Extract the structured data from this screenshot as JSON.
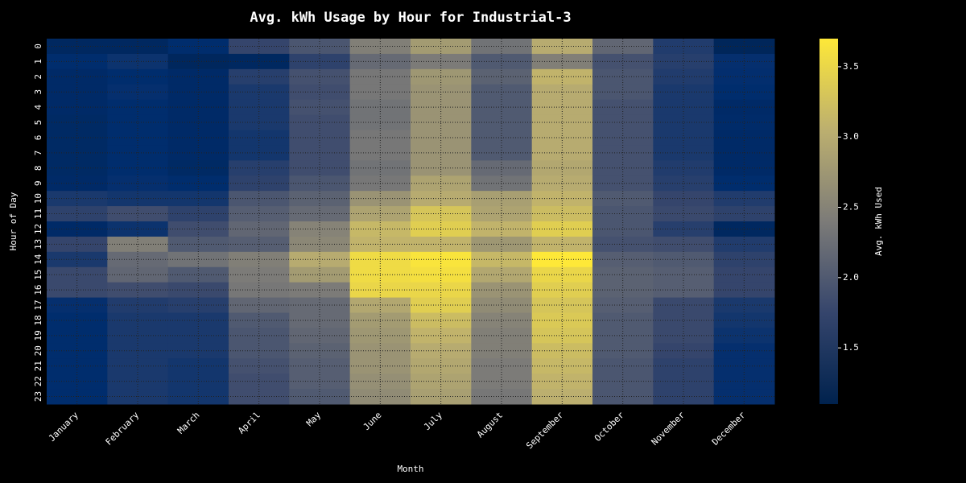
{
  "chart_data": {
    "type": "heatmap",
    "title": "Avg. kWh Usage by Hour for Industrial-3",
    "xlabel": "Month",
    "ylabel": "Hour of Day",
    "colorbar_label": "Avg. kWh Used",
    "colormap": "cividis",
    "colorbar_range": [
      1.1,
      3.7
    ],
    "colorbar_ticks": [
      "1.5",
      "2.0",
      "2.5",
      "3.0",
      "3.5"
    ],
    "grid": "dotted",
    "x": [
      "January",
      "February",
      "March",
      "April",
      "May",
      "June",
      "July",
      "August",
      "September",
      "October",
      "November",
      "December"
    ],
    "y": [
      "0",
      "1",
      "2",
      "3",
      "4",
      "5",
      "6",
      "7",
      "8",
      "9",
      "10",
      "11",
      "12",
      "13",
      "14",
      "15",
      "16",
      "17",
      "18",
      "19",
      "20",
      "21",
      "22",
      "23"
    ],
    "values": [
      [
        1.25,
        1.25,
        1.35,
        1.75,
        1.95,
        2.45,
        2.8,
        2.3,
        3.0,
        2.15,
        1.6,
        1.2
      ],
      [
        1.35,
        1.45,
        1.22,
        1.25,
        1.7,
        2.2,
        2.4,
        2.0,
        2.45,
        1.9,
        1.65,
        1.4
      ],
      [
        1.3,
        1.35,
        1.3,
        1.65,
        1.9,
        2.35,
        2.75,
        2.1,
        3.1,
        1.95,
        1.6,
        1.38
      ],
      [
        1.3,
        1.4,
        1.3,
        1.55,
        1.85,
        2.35,
        2.7,
        2.0,
        3.0,
        1.95,
        1.55,
        1.35
      ],
      [
        1.3,
        1.35,
        1.3,
        1.55,
        1.9,
        2.3,
        2.7,
        2.0,
        3.0,
        1.9,
        1.55,
        1.3
      ],
      [
        1.28,
        1.35,
        1.3,
        1.55,
        1.85,
        2.3,
        2.7,
        2.0,
        3.0,
        1.9,
        1.55,
        1.32
      ],
      [
        1.28,
        1.35,
        1.3,
        1.5,
        1.85,
        2.35,
        2.7,
        2.0,
        3.0,
        1.9,
        1.55,
        1.3
      ],
      [
        1.28,
        1.35,
        1.3,
        1.5,
        1.85,
        2.35,
        2.7,
        2.0,
        3.0,
        1.9,
        1.55,
        1.3
      ],
      [
        1.28,
        1.35,
        1.28,
        1.65,
        1.85,
        2.3,
        2.7,
        2.2,
        2.95,
        1.9,
        1.6,
        1.3
      ],
      [
        1.3,
        1.4,
        1.35,
        1.7,
        1.95,
        2.35,
        2.9,
        2.3,
        3.0,
        1.9,
        1.65,
        1.35
      ],
      [
        1.55,
        1.5,
        1.5,
        1.95,
        2.1,
        2.7,
        3.0,
        2.85,
        3.1,
        2.0,
        1.75,
        1.6
      ],
      [
        1.7,
        1.85,
        1.7,
        2.05,
        2.2,
        2.9,
        3.3,
        2.9,
        3.2,
        1.95,
        1.8,
        1.7
      ],
      [
        1.3,
        1.45,
        1.85,
        2.15,
        2.5,
        3.15,
        3.4,
        3.1,
        3.4,
        1.95,
        1.65,
        1.25
      ],
      [
        1.75,
        2.45,
        2.0,
        2.05,
        2.55,
        3.1,
        3.1,
        2.75,
        3.1,
        1.9,
        1.85,
        1.6
      ],
      [
        1.55,
        2.2,
        2.3,
        2.45,
        3.0,
        3.55,
        3.65,
        3.15,
        3.7,
        2.05,
        2.0,
        1.7
      ],
      [
        1.8,
        2.15,
        2.0,
        2.4,
        2.8,
        3.55,
        3.6,
        2.95,
        3.5,
        2.1,
        2.05,
        1.75
      ],
      [
        1.8,
        1.85,
        1.8,
        2.35,
        2.4,
        3.5,
        3.5,
        2.7,
        3.4,
        2.1,
        2.05,
        1.75
      ],
      [
        1.4,
        1.6,
        1.65,
        2.15,
        2.2,
        2.95,
        3.4,
        2.6,
        3.3,
        2.05,
        1.8,
        1.55
      ],
      [
        1.35,
        1.55,
        1.55,
        2.0,
        2.2,
        2.8,
        3.2,
        2.5,
        3.35,
        2.0,
        1.8,
        1.5
      ],
      [
        1.35,
        1.55,
        1.55,
        1.95,
        2.15,
        2.75,
        3.1,
        2.45,
        3.3,
        2.0,
        1.8,
        1.45
      ],
      [
        1.35,
        1.55,
        1.55,
        1.95,
        2.1,
        2.7,
        3.0,
        2.45,
        3.2,
        2.0,
        1.75,
        1.4
      ],
      [
        1.35,
        1.55,
        1.5,
        1.9,
        2.05,
        2.7,
        2.95,
        2.4,
        3.15,
        1.95,
        1.7,
        1.4
      ],
      [
        1.35,
        1.55,
        1.5,
        1.85,
        2.05,
        2.65,
        2.9,
        2.4,
        3.1,
        1.95,
        1.7,
        1.4
      ],
      [
        1.35,
        1.55,
        1.5,
        1.85,
        2.0,
        2.6,
        2.85,
        2.35,
        3.05,
        1.95,
        1.7,
        1.4
      ]
    ]
  }
}
